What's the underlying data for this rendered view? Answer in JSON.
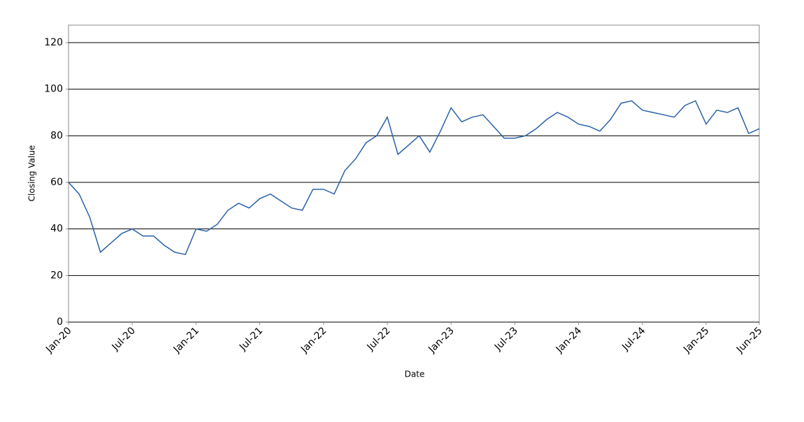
{
  "chart_data": {
    "type": "line",
    "x_label": "Date",
    "y_label": "Closing Value",
    "x": [
      "2020-01",
      "2020-02",
      "2020-03",
      "2020-04",
      "2020-05",
      "2020-06",
      "2020-07",
      "2020-08",
      "2020-09",
      "2020-10",
      "2020-11",
      "2020-12",
      "2021-01",
      "2021-02",
      "2021-03",
      "2021-04",
      "2021-05",
      "2021-06",
      "2021-07",
      "2021-08",
      "2021-09",
      "2021-10",
      "2021-11",
      "2021-12",
      "2022-01",
      "2022-02",
      "2022-03",
      "2022-04",
      "2022-05",
      "2022-06",
      "2022-07",
      "2022-08",
      "2022-09",
      "2022-10",
      "2022-11",
      "2022-12",
      "2023-01",
      "2023-02",
      "2023-03",
      "2023-04",
      "2023-05",
      "2023-06",
      "2023-07",
      "2023-08",
      "2023-09",
      "2023-10",
      "2023-11",
      "2023-12",
      "2024-01",
      "2024-02",
      "2024-03",
      "2024-04",
      "2024-05",
      "2024-06",
      "2024-07",
      "2024-08",
      "2024-09",
      "2024-10",
      "2024-11",
      "2024-12",
      "2025-01",
      "2025-02",
      "2025-03",
      "2025-04",
      "2025-05",
      "2025-06"
    ],
    "series": [
      {
        "name": "Closing Value",
        "color": "#2a62a8",
        "values": [
          60,
          55,
          45,
          30,
          34,
          38,
          40,
          37,
          37,
          33,
          30,
          29,
          40,
          39,
          42,
          48,
          51,
          49,
          53,
          55,
          52,
          49,
          48,
          57,
          57,
          55,
          65,
          70,
          77,
          80,
          88,
          72,
          76,
          80,
          73,
          82,
          92,
          86,
          88,
          89,
          84,
          79,
          79,
          80,
          83,
          87,
          90,
          88,
          85,
          84,
          82,
          87,
          94,
          95,
          91,
          90,
          89,
          88,
          93,
          95,
          85,
          91,
          90,
          92,
          81,
          83
        ]
      }
    ],
    "xlim": [
      "2020-01",
      "2025-06"
    ],
    "xticks": [
      {
        "value": "2020-01",
        "label": "Jan-20"
      },
      {
        "value": "2020-07",
        "label": "Jul-20"
      },
      {
        "value": "2021-01",
        "label": "Jan-21"
      },
      {
        "value": "2021-07",
        "label": "Jul-21"
      },
      {
        "value": "2022-01",
        "label": "Jan-22"
      },
      {
        "value": "2022-07",
        "label": "Jul-22"
      },
      {
        "value": "2023-01",
        "label": "Jan-23"
      },
      {
        "value": "2023-07",
        "label": "Jul-23"
      },
      {
        "value": "2024-01",
        "label": "Jan-24"
      },
      {
        "value": "2024-07",
        "label": "Jul-24"
      },
      {
        "value": "2025-01",
        "label": "Jan-25"
      },
      {
        "value": "2025-06",
        "label": "Jun-25"
      }
    ],
    "ylim": [
      0,
      127.5
    ],
    "yticks": [
      0,
      20,
      40,
      60,
      80,
      100,
      120
    ],
    "grid": true
  }
}
